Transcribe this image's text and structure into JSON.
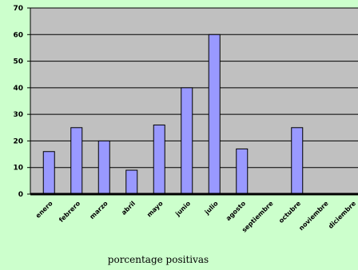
{
  "chart_data": {
    "type": "bar",
    "categories": [
      "enero",
      "febrero",
      "marzo",
      "abril",
      "mayo",
      "junio",
      "julio",
      "agosto",
      "septiembre",
      "octubre",
      "noviembre",
      "diciembre"
    ],
    "values": [
      16,
      25,
      20,
      9,
      26,
      40,
      60,
      17,
      0,
      25,
      0,
      0
    ],
    "xlabel": "porcentage positivas",
    "ylabel": "",
    "ylim": [
      0,
      70
    ],
    "yticks": [
      0,
      10,
      20,
      30,
      40,
      50,
      60,
      70
    ],
    "grid": true,
    "legend": "none",
    "colors": {
      "background": "#ccffcc",
      "plot_area": "#c0c0c0",
      "bar_fill": "#9999ff",
      "bar_edge": "#000000",
      "gridline": "#000000"
    }
  }
}
